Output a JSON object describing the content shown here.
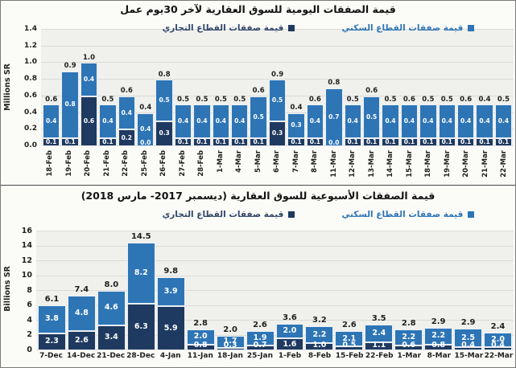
{
  "colors": {
    "commercial": "#1F3A60",
    "residential": "#2E75B6",
    "legend_commercial_text": "#31466B",
    "legend_residential_text": "#2E75B6",
    "plot_bg": "#F0F0ED",
    "gridline": "#DBDBD8",
    "text": "#1F1F1F"
  },
  "chart_data": [
    {
      "type": "bar",
      "stacked": true,
      "title": "قيمة الصفقات اليومية للسوق العقارية لآخر 30يوم عمل",
      "ylabel": "Millions SR",
      "xlabel": "",
      "ylim": [
        0,
        1.4
      ],
      "yticks": [
        0,
        0.2,
        0.4,
        0.6,
        0.8,
        1.0,
        1.2,
        1.4
      ],
      "ytick_labels": [
        "0.0",
        "0.2",
        "0.4",
        "0.6",
        "0.8",
        "1.0",
        "1.2",
        "1.4"
      ],
      "grid": true,
      "legend_position": "top",
      "categories": [
        "18-Feb",
        "19-Feb",
        "20-Feb",
        "21-Feb",
        "22-Feb",
        "25-Feb",
        "26-Feb",
        "27-Feb",
        "28-Feb",
        "1-Mar",
        "4-Mar",
        "5-Mar",
        "6-Mar",
        "7-Mar",
        "8-Mar",
        "11-Mar",
        "12-Mar",
        "13-Mar",
        "14-Mar",
        "15-Mar",
        "18-Mar",
        "19-Mar",
        "20-Mar",
        "21-Mar",
        "22-Mar"
      ],
      "series": [
        {
          "name": "قيمة صفقات القطاع التجاري",
          "color_key": "commercial",
          "values": [
            0.1,
            0.1,
            0.6,
            0.1,
            0.2,
            0.0,
            0.3,
            0.1,
            0.1,
            0.1,
            0.1,
            0.1,
            0.3,
            0.1,
            0.1,
            0.0,
            0.1,
            0.1,
            0.1,
            0.1,
            0.1,
            0.1,
            0.1,
            0.1,
            0.1
          ]
        },
        {
          "name": "قيمة صفقات القطاع السكني",
          "color_key": "residential",
          "values": [
            0.4,
            0.8,
            0.4,
            0.4,
            0.4,
            0.4,
            0.5,
            0.4,
            0.4,
            0.4,
            0.4,
            0.5,
            0.5,
            0.3,
            0.4,
            0.7,
            0.4,
            0.5,
            0.4,
            0.4,
            0.4,
            0.4,
            0.4,
            0.4,
            0.4
          ]
        }
      ],
      "totals": [
        0.6,
        0.9,
        1.0,
        0.5,
        0.6,
        0.4,
        0.8,
        0.5,
        0.5,
        0.5,
        0.5,
        0.6,
        0.9,
        0.4,
        0.6,
        0.8,
        0.5,
        0.6,
        0.5,
        0.6,
        0.5,
        0.5,
        0.6,
        0.4,
        0.5
      ]
    },
    {
      "type": "bar",
      "stacked": true,
      "title": "قيمة الصفقات الأسبوعية للسوق العقارية (ديسمبر 2017- مارس 2018)",
      "ylabel": "Billions SR",
      "xlabel": "",
      "ylim": [
        0,
        16
      ],
      "yticks": [
        0,
        2,
        4,
        6,
        8,
        10,
        12,
        14,
        16
      ],
      "ytick_labels": [
        "0",
        "2",
        "4",
        "6",
        "8",
        "10",
        "12",
        "14",
        "16"
      ],
      "grid": true,
      "legend_position": "top",
      "categories": [
        "7-Dec",
        "14-Dec",
        "21-Dec",
        "28-Dec",
        "4-Jan",
        "11-Jan",
        "18-Jan",
        "25-Jan",
        "1-Feb",
        "8-Feb",
        "15-Feb",
        "22-Feb",
        "1-Mar",
        "8-Mar",
        "15-Mar",
        "22-Mar"
      ],
      "series": [
        {
          "name": "قيمة صفقات القطاع التجاري",
          "color_key": "commercial",
          "values": [
            2.3,
            2.6,
            3.4,
            6.3,
            5.9,
            0.8,
            0.3,
            0.7,
            1.6,
            1.0,
            0.5,
            1.1,
            0.6,
            0.8,
            0.4,
            0.4
          ]
        },
        {
          "name": "قيمة صفقات القطاع السكني",
          "color_key": "residential",
          "values": [
            3.8,
            4.8,
            4.6,
            8.2,
            3.9,
            2.0,
            1.7,
            1.9,
            2.0,
            2.2,
            2.1,
            2.4,
            2.2,
            2.2,
            2.5,
            2.0
          ]
        }
      ],
      "totals": [
        6.1,
        7.4,
        8.0,
        14.5,
        9.8,
        2.8,
        2.0,
        2.6,
        3.6,
        3.2,
        2.6,
        3.5,
        2.8,
        2.9,
        2.9,
        2.4
      ]
    }
  ]
}
